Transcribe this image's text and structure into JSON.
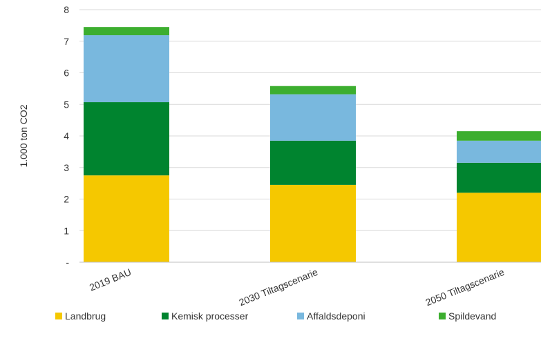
{
  "chart_data": {
    "type": "bar",
    "stacked": true,
    "title": "",
    "xlabel": "",
    "ylabel": "1.000 ton CO2",
    "ylim": [
      0,
      8
    ],
    "y_ticks": [
      "-",
      "1",
      "2",
      "3",
      "4",
      "5",
      "6",
      "7",
      "8"
    ],
    "grid": true,
    "legend_position": "bottom",
    "categories": [
      "2019 BAU",
      "2030 Tiltagscenarie",
      "2050 Tiltagscenarie"
    ],
    "series": [
      {
        "name": "Landbrug",
        "color": "#f5c800",
        "values": [
          2.75,
          2.45,
          2.2
        ]
      },
      {
        "name": "Kemisk processer",
        "color": "#00842f",
        "values": [
          2.32,
          1.4,
          0.95
        ]
      },
      {
        "name": "Affaldsdeponi",
        "color": "#79b8de",
        "values": [
          2.12,
          1.47,
          0.7
        ]
      },
      {
        "name": "Spildevand",
        "color": "#3cae2f",
        "values": [
          0.26,
          0.26,
          0.3
        ]
      }
    ]
  }
}
